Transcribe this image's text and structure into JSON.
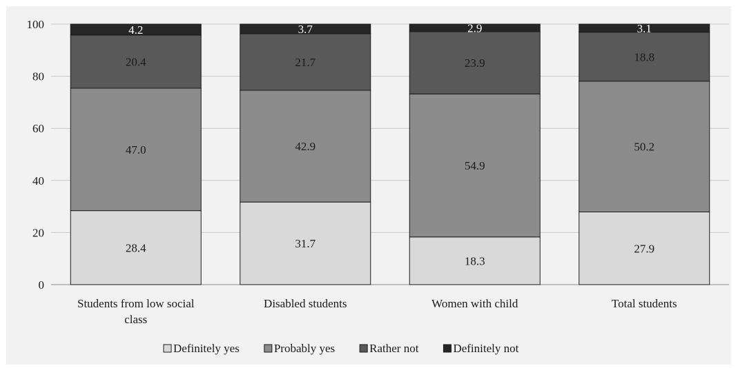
{
  "chart_data": {
    "type": "bar",
    "stacked": true,
    "categories": [
      [
        "Students from low social",
        "class"
      ],
      [
        "Disabled students"
      ],
      [
        "Women with child"
      ],
      [
        "Total students"
      ]
    ],
    "series": [
      {
        "name": "Definitely yes",
        "color": "#d9d9d9",
        "values": [
          28.4,
          31.7,
          18.3,
          27.9
        ],
        "labels": [
          "28.4",
          "31.7",
          "18.3",
          "27.9"
        ]
      },
      {
        "name": "Probably yes",
        "color": "#8c8c8c",
        "values": [
          47.0,
          42.9,
          54.9,
          50.2
        ],
        "labels": [
          "47.0",
          "42.9",
          "54.9",
          "50.2"
        ]
      },
      {
        "name": "Rather not",
        "color": "#595959",
        "values": [
          20.4,
          21.7,
          23.9,
          18.8
        ],
        "labels": [
          "20.4",
          "21.7",
          "23.9",
          "18.8"
        ]
      },
      {
        "name": "Definitely not",
        "color": "#262626",
        "values": [
          4.2,
          3.7,
          2.9,
          3.1
        ],
        "labels": [
          "4.2",
          "3.7",
          "2.9",
          "3.1"
        ]
      }
    ],
    "yticks": [
      0,
      20,
      40,
      60,
      80,
      100
    ],
    "ylim": [
      0,
      100
    ],
    "grid": true,
    "legend": "bottom"
  }
}
